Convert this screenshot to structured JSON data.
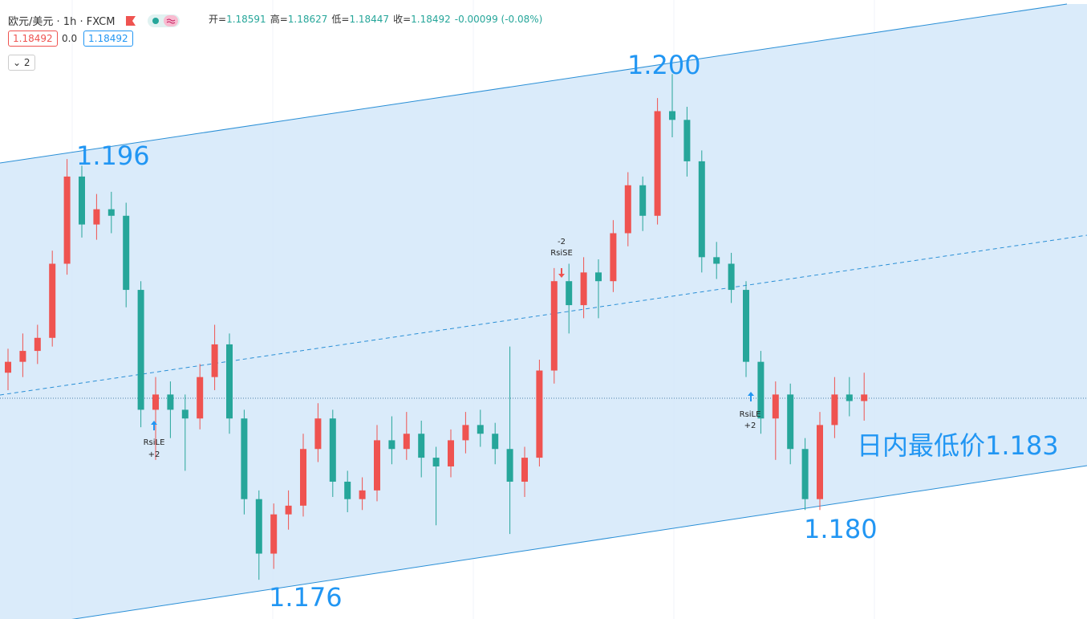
{
  "chart_data": {
    "type": "candlestick",
    "header": {
      "symbol": "欧元/美元",
      "interval": "1h",
      "source": "FXCM",
      "ohlc": [
        {
          "label": "开=",
          "value": "1.18591"
        },
        {
          "label": "高=",
          "value": "1.18627"
        },
        {
          "label": "低=",
          "value": "1.18447"
        },
        {
          "label": "收=",
          "value": "1.18492"
        }
      ],
      "change": "-0.00099 (-0.08%)",
      "sell": "1.18492",
      "spread": "0.0",
      "buy": "1.18492",
      "collapse_count": "2"
    },
    "up_color": "#ef5350",
    "down_color": "#26a69a",
    "ylim": [
      1.1747,
      1.2031
    ],
    "open": [
      1.186,
      1.1865,
      1.187,
      1.1876,
      1.191,
      1.195,
      1.1928,
      1.1935,
      1.1932,
      1.1898,
      1.1843,
      1.185,
      1.1843,
      1.1839,
      1.1858,
      1.1873,
      1.1839,
      1.1802,
      1.1777,
      1.1795,
      1.1799,
      1.1825,
      1.1839,
      1.181,
      1.1802,
      1.1806,
      1.1829,
      1.1825,
      1.1832,
      1.1821,
      1.1817,
      1.1829,
      1.1836,
      1.1832,
      1.1825,
      1.181,
      1.1821,
      1.1861,
      1.1902,
      1.1891,
      1.1906,
      1.1902,
      1.1924,
      1.1946,
      1.1932,
      1.198,
      1.1976,
      1.1957,
      1.1913,
      1.191,
      1.1898,
      1.1865,
      1.1839,
      1.185,
      1.1825,
      1.1802,
      1.1836,
      1.185,
      1.1847
    ],
    "high": [
      1.1871,
      1.1878,
      1.1882,
      1.1916,
      1.1958,
      1.1955,
      1.1942,
      1.1943,
      1.1938,
      1.1902,
      1.1858,
      1.1856,
      1.185,
      1.1864,
      1.1882,
      1.1878,
      1.1843,
      1.1806,
      1.18,
      1.1806,
      1.1832,
      1.1846,
      1.1843,
      1.1815,
      1.1812,
      1.1836,
      1.184,
      1.1842,
      1.1838,
      1.1826,
      1.1834,
      1.1842,
      1.1843,
      1.1837,
      1.1872,
      1.1826,
      1.1866,
      1.1908,
      1.191,
      1.1913,
      1.1912,
      1.193,
      1.1952,
      1.195,
      1.1986,
      1.1997,
      1.1982,
      1.1962,
      1.192,
      1.1915,
      1.1902,
      1.187,
      1.1856,
      1.1855,
      1.183,
      1.1842,
      1.1858,
      1.1858,
      1.186
    ],
    "low": [
      1.1852,
      1.1858,
      1.1864,
      1.1872,
      1.1905,
      1.1922,
      1.1921,
      1.1924,
      1.189,
      1.1835,
      1.182,
      1.183,
      1.1815,
      1.1834,
      1.1852,
      1.1832,
      1.1795,
      1.1765,
      1.177,
      1.1788,
      1.1794,
      1.1819,
      1.1803,
      1.1796,
      1.1797,
      1.1801,
      1.1818,
      1.182,
      1.1812,
      1.179,
      1.1812,
      1.1823,
      1.1826,
      1.1818,
      1.1786,
      1.1803,
      1.1817,
      1.1855,
      1.1878,
      1.1885,
      1.1885,
      1.1897,
      1.1918,
      1.1925,
      1.1928,
      1.1968,
      1.195,
      1.1906,
      1.1903,
      1.1892,
      1.1858,
      1.1832,
      1.182,
      1.1818,
      1.1797,
      1.1797,
      1.183,
      1.184,
      1.1838
    ],
    "close": [
      1.1865,
      1.187,
      1.1876,
      1.191,
      1.195,
      1.1928,
      1.1935,
      1.1932,
      1.1898,
      1.1843,
      1.185,
      1.1843,
      1.1839,
      1.1858,
      1.1873,
      1.1839,
      1.1802,
      1.1777,
      1.1795,
      1.1799,
      1.1825,
      1.1839,
      1.181,
      1.1802,
      1.1806,
      1.1829,
      1.1825,
      1.1832,
      1.1821,
      1.1817,
      1.1829,
      1.1836,
      1.1832,
      1.1825,
      1.181,
      1.1821,
      1.1861,
      1.1902,
      1.1891,
      1.1906,
      1.1902,
      1.1924,
      1.1946,
      1.1932,
      1.198,
      1.1976,
      1.1957,
      1.1913,
      1.191,
      1.1898,
      1.1865,
      1.1839,
      1.185,
      1.1825,
      1.1802,
      1.1836,
      1.185,
      1.1847,
      1.185
    ],
    "annotations": [
      "1.196",
      "1.200",
      "1.176",
      "1.180",
      "日内最低价1.183"
    ],
    "signals": [
      {
        "label": "RsiLE",
        "qty": "+2"
      },
      {
        "label": "RsiSE",
        "qty": "-2"
      },
      {
        "label": "RsiLE",
        "qty": "+2"
      }
    ]
  }
}
